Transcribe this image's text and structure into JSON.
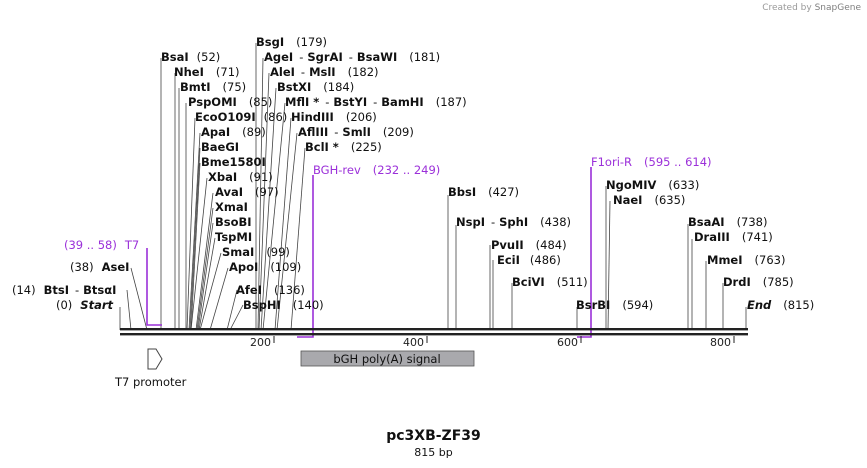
{
  "credit": {
    "prefix": "Created by",
    "brand": "SnapGene"
  },
  "title": "pc3XB-ZF39",
  "length_label": "815 bp",
  "axis_ticks": [
    "200",
    "400",
    "600",
    "800"
  ],
  "features": {
    "t7_promoter": "T7 promoter",
    "bgh": "bGH poly(A) signal"
  },
  "labels": [
    {
      "name": "BsaI",
      "pos": "(52)"
    },
    {
      "name": "BsgI",
      "pos": "(179)"
    },
    {
      "name": "AgeI",
      "sep1": "-",
      "name2": "SgrAI",
      "sep2": "-",
      "name3": "BsaWI",
      "pos": "(181)"
    },
    {
      "name": "NheI",
      "pos": "(71)"
    },
    {
      "name": "AleI",
      "sep1": "-",
      "name2": "MslI",
      "pos": "(182)"
    },
    {
      "name": "BmtI",
      "pos": "(75)"
    },
    {
      "name": "BstXI",
      "pos": "(184)"
    },
    {
      "name": "PspOMI",
      "pos": "(85)"
    },
    {
      "name": "MflI *",
      "sep1": "-",
      "name2": "BstYI",
      "sep2": "-",
      "name3": "BamHI",
      "pos": "(187)"
    },
    {
      "name": "EcoO109I",
      "pos": "(86)"
    },
    {
      "name": "HindIII",
      "pos": "(206)"
    },
    {
      "name": "ApaI",
      "pos": "(89)"
    },
    {
      "name": "AflIII",
      "sep1": "-",
      "name2": "SmlI",
      "pos": "(209)"
    },
    {
      "name": "BaeGI",
      "pos": ""
    },
    {
      "name": "BclI *",
      "pos": "(225)"
    },
    {
      "name": "Bme1580I",
      "pos": ""
    },
    {
      "name": "XbaI",
      "pos": "(91)"
    },
    {
      "name": "AvaI",
      "pos": "(97)"
    },
    {
      "name": "XmaI",
      "pos": ""
    },
    {
      "name": "BsoBI",
      "pos": ""
    },
    {
      "name": "TspMI",
      "pos": ""
    },
    {
      "name": "SmaI",
      "pos": "(99)"
    },
    {
      "name": "ApoI",
      "pos": "(109)"
    },
    {
      "name": "AfeI",
      "pos": "(136)"
    },
    {
      "name": "BspHI",
      "pos": "(140)"
    },
    {
      "name": "AseI",
      "pos": "(38)"
    },
    {
      "name": "BtsI",
      "sep1": "-",
      "name2": "BtsαI",
      "pos": "(14)"
    },
    {
      "name": "Start",
      "pos": "(0)"
    },
    {
      "name": "BbsI",
      "pos": "(427)"
    },
    {
      "name": "NspI",
      "sep1": "-",
      "name2": "SphI",
      "pos": "(438)"
    },
    {
      "name": "PvuII",
      "pos": "(484)"
    },
    {
      "name": "EciI",
      "pos": "(486)"
    },
    {
      "name": "BciVI",
      "pos": "(511)"
    },
    {
      "name": "BsrBI",
      "pos": "(594)"
    },
    {
      "name": "NgoMIV",
      "pos": "(633)"
    },
    {
      "name": "NaeI",
      "pos": "(635)"
    },
    {
      "name": "BsaAI",
      "pos": "(738)"
    },
    {
      "name": "DraIII",
      "pos": "(741)"
    },
    {
      "name": "MmeI",
      "pos": "(763)"
    },
    {
      "name": "DrdI",
      "pos": "(785)"
    },
    {
      "name": "End",
      "pos": "(815)"
    }
  ],
  "primers": [
    {
      "name": "BGH-rev",
      "range": "(232 .. 249)"
    },
    {
      "name": "F1ori-R",
      "range": "(595 .. 614)"
    },
    {
      "name": "T7",
      "range": "(39 .. 58)"
    }
  ],
  "colors": {
    "primer": "#9b30d9",
    "feature_fill": "#a9a9ad",
    "line": "#222222"
  }
}
